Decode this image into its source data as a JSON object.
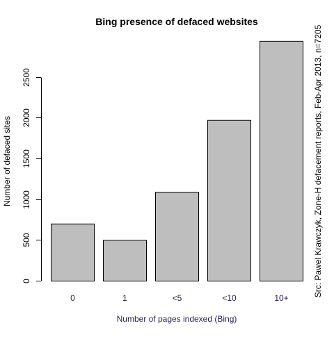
{
  "chart_data": {
    "type": "bar",
    "title": "Bing presence of defaced websites",
    "xlabel": "Number of pages indexed (Bing)",
    "ylabel": "Number of defaced sites",
    "source_note": "Src: Pawel Krawczyk, Zone-H defacement reports, Feb-Apr 2013, n=7205",
    "categories": [
      "0",
      "1",
      "<5",
      "<10",
      "10+"
    ],
    "values": [
      700,
      500,
      1090,
      1970,
      2940
    ],
    "yticks": [
      "0",
      "500",
      "1000",
      "1500",
      "2000",
      "2500"
    ],
    "ylim": [
      0,
      3000
    ],
    "grid": false,
    "legend": "none",
    "bar_color": "#bebebe",
    "xlabel_color": "#2d1b4e"
  }
}
